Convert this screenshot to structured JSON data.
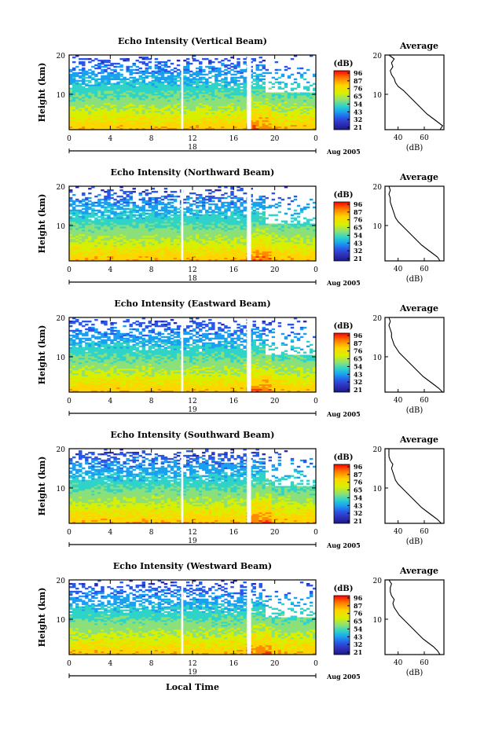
{
  "figure": {
    "local_time_label": "Local Time",
    "date_label": "Aug 2005",
    "colorbar_unit": "(dB)",
    "colorbar_ticks": [
      "96",
      "87",
      "76",
      "65",
      "54",
      "43",
      "32",
      "21"
    ],
    "colorbar_colors": [
      "#ff0000",
      "#ff7a00",
      "#ffd400",
      "#d8f000",
      "#8ce07a",
      "#2fd3c8",
      "#1aa0f0",
      "#2a57e6",
      "#2e2fb8",
      "#1a1a8a"
    ],
    "avg_title": "Average",
    "avg_xlabel": "(dB)"
  },
  "chart_data": [
    {
      "type": "heatmap",
      "title": "Echo Intensity (Vertical Beam)",
      "ylabel": "Height (km)",
      "xlabel": "Local Time",
      "x_ticks": [
        "0",
        "4",
        "8",
        "12",
        "16",
        "20",
        "0"
      ],
      "xlim": [
        0,
        24
      ],
      "y_ticks": [
        "20",
        "10"
      ],
      "ylim": [
        1,
        20
      ],
      "day_label": "18",
      "data_gaps_hours": [
        [
          10.9,
          11.1
        ],
        [
          17.3,
          17.7
        ]
      ],
      "colorbar": {
        "label": "(dB)",
        "ticks": [
          96,
          87,
          76,
          65,
          54,
          43,
          32,
          21
        ]
      },
      "average_profile": {
        "title": "Average",
        "xlabel": "(dB)",
        "x_ticks": [
          "40",
          "60"
        ],
        "xlim": [
          30,
          75
        ],
        "y_ticks": [
          "20",
          "10"
        ],
        "ylim": [
          1,
          20
        ],
        "heights_km": [
          1,
          2,
          3,
          4,
          5,
          6,
          7,
          8,
          9,
          10,
          11,
          12,
          13,
          14,
          15,
          16,
          17,
          18,
          19,
          20
        ],
        "values_db": [
          72,
          74,
          70,
          66,
          62,
          59,
          56,
          53,
          50,
          47,
          44,
          40,
          38,
          37,
          35,
          34,
          36,
          35,
          37,
          33
        ]
      }
    },
    {
      "type": "heatmap",
      "title": "Echo Intensity (Northward Beam)",
      "ylabel": "Height (km)",
      "xlabel": "Local Time",
      "x_ticks": [
        "0",
        "4",
        "8",
        "12",
        "16",
        "20",
        "0"
      ],
      "xlim": [
        0,
        24
      ],
      "y_ticks": [
        "20",
        "10"
      ],
      "ylim": [
        1,
        20
      ],
      "day_label": "18",
      "data_gaps_hours": [
        [
          10.9,
          11.1
        ],
        [
          17.3,
          17.7
        ]
      ],
      "colorbar": {
        "label": "(dB)",
        "ticks": [
          96,
          87,
          76,
          65,
          54,
          43,
          32,
          21
        ]
      },
      "average_profile": {
        "title": "Average",
        "xlabel": "(dB)",
        "x_ticks": [
          "40",
          "60"
        ],
        "xlim": [
          30,
          75
        ],
        "y_ticks": [
          "20",
          "10"
        ],
        "ylim": [
          1,
          20
        ],
        "heights_km": [
          1,
          2,
          3,
          4,
          5,
          6,
          7,
          8,
          9,
          10,
          11,
          12,
          13,
          14,
          15,
          16,
          17,
          18,
          19,
          20
        ],
        "values_db": [
          72,
          70,
          66,
          62,
          58,
          55,
          52,
          49,
          46,
          43,
          40,
          38,
          37,
          36,
          35,
          34,
          34,
          33,
          34,
          33
        ]
      }
    },
    {
      "type": "heatmap",
      "title": "Echo Intensity (Eastward Beam)",
      "ylabel": "Height (km)",
      "xlabel": "Local Time",
      "x_ticks": [
        "0",
        "4",
        "8",
        "12",
        "16",
        "20",
        "0"
      ],
      "xlim": [
        0,
        24
      ],
      "y_ticks": [
        "20",
        "10"
      ],
      "ylim": [
        1,
        20
      ],
      "day_label": "19",
      "data_gaps_hours": [
        [
          10.9,
          11.1
        ],
        [
          17.3,
          17.7
        ]
      ],
      "colorbar": {
        "label": "(dB)",
        "ticks": [
          96,
          87,
          76,
          65,
          54,
          43,
          32,
          21
        ]
      },
      "average_profile": {
        "title": "Average",
        "xlabel": "(dB)",
        "x_ticks": [
          "40",
          "60"
        ],
        "xlim": [
          30,
          75
        ],
        "y_ticks": [
          "20",
          "10"
        ],
        "ylim": [
          1,
          20
        ],
        "heights_km": [
          1,
          2,
          3,
          4,
          5,
          6,
          7,
          8,
          9,
          10,
          11,
          12,
          13,
          14,
          15,
          16,
          17,
          18,
          19,
          20
        ],
        "values_db": [
          74,
          71,
          67,
          63,
          59,
          56,
          53,
          50,
          47,
          44,
          41,
          39,
          37,
          36,
          35,
          35,
          34,
          33,
          34,
          33
        ]
      }
    },
    {
      "type": "heatmap",
      "title": "Echo Intensity (Southward Beam)",
      "ylabel": "Height (km)",
      "xlabel": "Local Time",
      "x_ticks": [
        "0",
        "4",
        "8",
        "12",
        "16",
        "20",
        "0"
      ],
      "xlim": [
        0,
        24
      ],
      "y_ticks": [
        "20",
        "10"
      ],
      "ylim": [
        1,
        20
      ],
      "day_label": "19",
      "data_gaps_hours": [
        [
          10.9,
          11.1
        ],
        [
          17.3,
          17.7
        ]
      ],
      "colorbar": {
        "label": "(dB)",
        "ticks": [
          96,
          87,
          76,
          65,
          54,
          43,
          32,
          21
        ]
      },
      "average_profile": {
        "title": "Average",
        "xlabel": "(dB)",
        "x_ticks": [
          "40",
          "60"
        ],
        "xlim": [
          30,
          75
        ],
        "y_ticks": [
          "20",
          "10"
        ],
        "ylim": [
          1,
          20
        ],
        "heights_km": [
          1,
          2,
          3,
          4,
          5,
          6,
          7,
          8,
          9,
          10,
          11,
          12,
          13,
          14,
          15,
          16,
          17,
          18,
          19,
          20
        ],
        "values_db": [
          73,
          70,
          66,
          62,
          58,
          55,
          52,
          49,
          46,
          43,
          40,
          38,
          37,
          36,
          35,
          36,
          34,
          33,
          33,
          33
        ]
      }
    },
    {
      "type": "heatmap",
      "title": "Echo Intensity (Westward Beam)",
      "ylabel": "Height (km)",
      "xlabel": "Local Time",
      "x_ticks": [
        "0",
        "4",
        "8",
        "12",
        "16",
        "20",
        "0"
      ],
      "xlim": [
        0,
        24
      ],
      "y_ticks": [
        "20",
        "10"
      ],
      "ylim": [
        1,
        20
      ],
      "day_label": "19",
      "data_gaps_hours": [
        [
          10.9,
          11.1
        ],
        [
          17.3,
          17.7
        ]
      ],
      "colorbar": {
        "label": "(dB)",
        "ticks": [
          96,
          87,
          76,
          65,
          54,
          43,
          32,
          21
        ]
      },
      "average_profile": {
        "title": "Average",
        "xlabel": "(dB)",
        "x_ticks": [
          "40",
          "60"
        ],
        "xlim": [
          30,
          75
        ],
        "y_ticks": [
          "20",
          "10"
        ],
        "ylim": [
          1,
          20
        ],
        "heights_km": [
          1,
          2,
          3,
          4,
          5,
          6,
          7,
          8,
          9,
          10,
          11,
          12,
          13,
          14,
          15,
          16,
          17,
          18,
          19,
          20
        ],
        "values_db": [
          72,
          70,
          67,
          63,
          59,
          56,
          53,
          50,
          47,
          44,
          41,
          39,
          37,
          36,
          37,
          35,
          34,
          34,
          35,
          33
        ]
      }
    }
  ]
}
